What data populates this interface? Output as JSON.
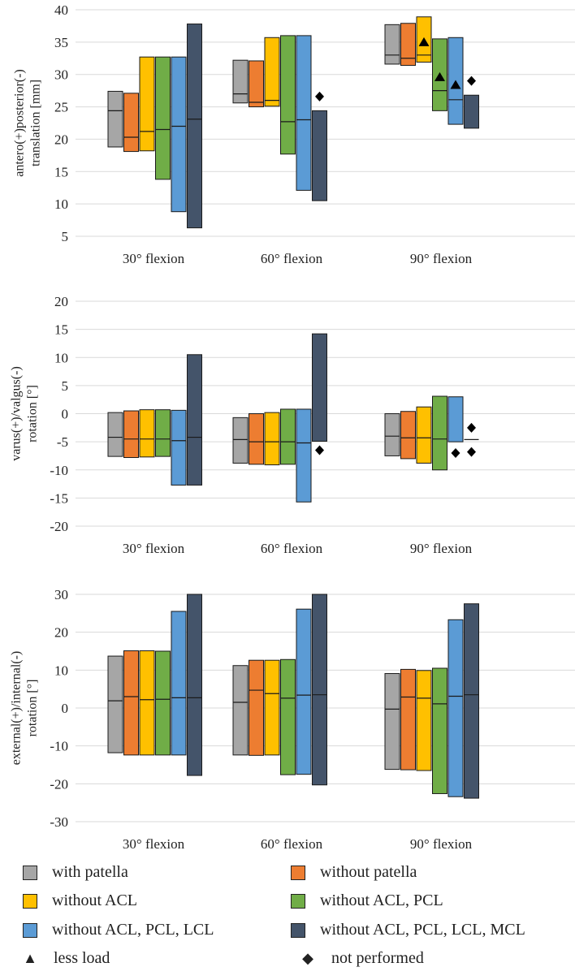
{
  "colors": {
    "with_patella": "#a6a6a6",
    "without_patella": "#ed7d31",
    "without_acl": "#ffc000",
    "without_acl_pcl": "#70ad47",
    "without_acl_pcl_lcl": "#5b9bd5",
    "without_acl_pcl_lcl_mcl": "#44546a"
  },
  "legend": {
    "items": [
      {
        "label": "with patella",
        "color": "#a6a6a6"
      },
      {
        "label": "without patella",
        "color": "#ed7d31"
      },
      {
        "label": "without ACL",
        "color": "#ffc000"
      },
      {
        "label": "without ACL, PCL",
        "color": "#70ad47"
      },
      {
        "label": "without ACL, PCL, LCL",
        "color": "#5b9bd5"
      },
      {
        "label": "without ACL, PCL, LCL, MCL",
        "color": "#44546a"
      }
    ],
    "less_load": {
      "symbol": "▲",
      "label": "less load"
    },
    "not_performed": {
      "symbol": "◆",
      "label": "not performed"
    }
  },
  "chart_data": [
    {
      "type": "bar",
      "subtype": "floating-range",
      "ylabel_lines": [
        "antero(+)posterior(-)",
        "translation [mm]"
      ],
      "ylim": [
        5,
        40
      ],
      "yticks": [
        5,
        10,
        15,
        20,
        25,
        30,
        35,
        40
      ],
      "categories": [
        "30° flexion",
        "60° flexion",
        "90° flexion"
      ],
      "series": [
        {
          "name": "with patella",
          "color": "#a6a6a6",
          "ranges": [
            [
              18.8,
              27.4,
              24.4
            ],
            [
              25.6,
              32.2,
              27.0
            ],
            [
              31.6,
              37.7,
              33.0
            ]
          ]
        },
        {
          "name": "without patella",
          "color": "#ed7d31",
          "ranges": [
            [
              18.1,
              27.1,
              20.3
            ],
            [
              25.0,
              32.1,
              25.7
            ],
            [
              31.4,
              37.9,
              32.5
            ]
          ]
        },
        {
          "name": "without ACL",
          "color": "#ffc000",
          "ranges": [
            [
              18.2,
              32.7,
              21.2
            ],
            [
              25.1,
              35.7,
              26.0
            ],
            [
              31.9,
              38.9,
              33.0
            ]
          ]
        },
        {
          "name": "without ACL, PCL",
          "color": "#70ad47",
          "ranges": [
            [
              13.8,
              32.7,
              21.5
            ],
            [
              17.7,
              36.0,
              22.7
            ],
            [
              24.4,
              35.5,
              27.5
            ]
          ]
        },
        {
          "name": "without ACL, PCL, LCL",
          "color": "#5b9bd5",
          "ranges": [
            [
              8.8,
              32.7,
              22.0
            ],
            [
              12.1,
              36.0,
              23.0
            ],
            [
              22.3,
              35.7,
              26.1
            ]
          ]
        },
        {
          "name": "without ACL, PCL, LCL, MCL",
          "color": "#44546a",
          "ranges": [
            [
              6.3,
              37.8,
              23.1
            ],
            [
              10.5,
              24.4,
              null
            ],
            [
              21.7,
              26.8,
              null
            ]
          ]
        }
      ],
      "markers": [
        {
          "type": "not performed",
          "category": "60° flexion",
          "series": "without ACL, PCL, LCL, MCL",
          "y": 26.6
        },
        {
          "type": "less load",
          "category": "90° flexion",
          "series": "without ACL",
          "y": 35.0
        },
        {
          "type": "less load",
          "category": "90° flexion",
          "series": "without ACL, PCL",
          "y": 29.6
        },
        {
          "type": "less load",
          "category": "90° flexion",
          "series": "without ACL, PCL, LCL",
          "y": 28.4
        },
        {
          "type": "not performed",
          "category": "90° flexion",
          "series": "without ACL, PCL, LCL, MCL",
          "y": 29.0
        }
      ]
    },
    {
      "type": "bar",
      "subtype": "floating-range",
      "ylabel_lines": [
        "varus(+)/valgus(-)",
        "rotation [°]"
      ],
      "ylim": [
        -20,
        20
      ],
      "yticks": [
        -20,
        -15,
        -10,
        -5,
        0,
        5,
        10,
        15,
        20
      ],
      "categories": [
        "30° flexion",
        "60° flexion",
        "90° flexion"
      ],
      "series": [
        {
          "name": "with patella",
          "color": "#a6a6a6",
          "ranges": [
            [
              -7.6,
              0.2,
              -4.2
            ],
            [
              -8.8,
              -0.7,
              -4.6
            ],
            [
              -7.5,
              0.0,
              -4.0
            ]
          ]
        },
        {
          "name": "without patella",
          "color": "#ed7d31",
          "ranges": [
            [
              -7.8,
              0.5,
              -4.5
            ],
            [
              -9.0,
              0.0,
              -5.0
            ],
            [
              -8.0,
              0.4,
              -4.3
            ]
          ]
        },
        {
          "name": "without ACL",
          "color": "#ffc000",
          "ranges": [
            [
              -7.7,
              0.7,
              -4.5
            ],
            [
              -9.1,
              0.2,
              -5.0
            ],
            [
              -8.8,
              1.2,
              -4.3
            ]
          ]
        },
        {
          "name": "without ACL, PCL",
          "color": "#70ad47",
          "ranges": [
            [
              -7.6,
              0.7,
              -4.5
            ],
            [
              -9.0,
              0.8,
              -5.0
            ],
            [
              -10.0,
              3.1,
              -4.5
            ]
          ]
        },
        {
          "name": "without ACL, PCL, LCL",
          "color": "#5b9bd5",
          "ranges": [
            [
              -12.7,
              0.6,
              -4.8
            ],
            [
              -15.7,
              0.8,
              -5.2
            ],
            [
              -5.0,
              3.0,
              null
            ]
          ]
        },
        {
          "name": "without ACL, PCL, LCL, MCL",
          "color": "#44546a",
          "ranges": [
            [
              -12.7,
              10.5,
              -4.2
            ],
            [
              -4.9,
              14.2,
              null
            ],
            [
              null,
              null,
              -4.6
            ]
          ]
        }
      ],
      "markers": [
        {
          "type": "not performed",
          "category": "60° flexion",
          "series": "without ACL, PCL, LCL, MCL",
          "y": -6.5
        },
        {
          "type": "not performed",
          "category": "90° flexion",
          "series": "without ACL, PCL, LCL",
          "y": -7.0
        },
        {
          "type": "not performed",
          "category": "90° flexion",
          "series": "without ACL, PCL, LCL, MCL",
          "y": -2.5
        },
        {
          "type": "not performed",
          "category": "90° flexion",
          "series": "without ACL, PCL, LCL, MCL",
          "y": -6.8
        }
      ]
    },
    {
      "type": "bar",
      "subtype": "floating-range",
      "ylabel_lines": [
        "external(+)/internal(-)",
        "rotation [°]"
      ],
      "ylim": [
        -30,
        30
      ],
      "yticks": [
        -30,
        -20,
        -10,
        0,
        10,
        20,
        30
      ],
      "categories": [
        "30° flexion",
        "60° flexion",
        "90° flexion"
      ],
      "series": [
        {
          "name": "with patella",
          "color": "#a6a6a6",
          "ranges": [
            [
              -11.8,
              13.7,
              1.9
            ],
            [
              -12.4,
              11.2,
              1.5
            ],
            [
              -16.2,
              9.1,
              -0.3
            ]
          ]
        },
        {
          "name": "without patella",
          "color": "#ed7d31",
          "ranges": [
            [
              -12.4,
              15.1,
              3.0
            ],
            [
              -12.5,
              12.6,
              4.7
            ],
            [
              -16.3,
              10.2,
              2.9
            ]
          ]
        },
        {
          "name": "without ACL",
          "color": "#ffc000",
          "ranges": [
            [
              -12.4,
              15.1,
              2.2
            ],
            [
              -12.4,
              12.6,
              3.8
            ],
            [
              -16.5,
              9.9,
              2.6
            ]
          ]
        },
        {
          "name": "without ACL, PCL",
          "color": "#70ad47",
          "ranges": [
            [
              -12.4,
              15.0,
              2.3
            ],
            [
              -17.6,
              12.8,
              2.6
            ],
            [
              -22.6,
              10.5,
              1.1
            ]
          ]
        },
        {
          "name": "without ACL, PCL, LCL",
          "color": "#5b9bd5",
          "ranges": [
            [
              -12.4,
              25.5,
              2.7
            ],
            [
              -17.5,
              26.1,
              3.4
            ],
            [
              -23.4,
              23.3,
              3.1
            ]
          ]
        },
        {
          "name": "without ACL, PCL, LCL, MCL",
          "color": "#44546a",
          "ranges": [
            [
              -17.8,
              30.0,
              2.7
            ],
            [
              -20.3,
              30.0,
              3.5
            ],
            [
              -23.8,
              27.5,
              3.5
            ]
          ]
        }
      ],
      "markers": []
    }
  ]
}
